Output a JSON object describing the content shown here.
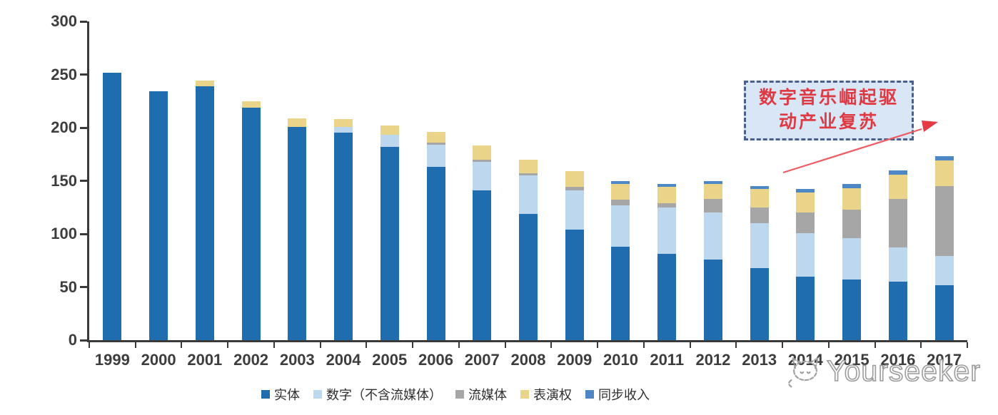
{
  "chart_data": {
    "type": "bar",
    "stacked": true,
    "title": "",
    "xlabel": "",
    "ylabel": "",
    "ylim": [
      0,
      300
    ],
    "yticks": [
      0,
      50,
      100,
      150,
      200,
      250,
      300
    ],
    "grid": false,
    "legend_position": "bottom",
    "categories": [
      "1999",
      "2000",
      "2001",
      "2002",
      "2003",
      "2004",
      "2005",
      "2006",
      "2007",
      "2008",
      "2009",
      "2010",
      "2011",
      "2012",
      "2013",
      "2014",
      "2015",
      "2016",
      "2017"
    ],
    "series": [
      {
        "name": "实体",
        "color": "#1f6dae",
        "values": [
          252,
          234,
          239,
          219,
          201,
          195,
          182,
          163,
          141,
          119,
          104,
          88,
          81,
          76,
          68,
          60,
          57,
          55,
          52
        ]
      },
      {
        "name": "数字（不含流媒体）",
        "color": "#bdd7ee",
        "values": [
          0,
          0,
          0,
          0,
          0,
          6,
          11,
          21,
          27,
          36,
          37,
          39,
          44,
          44,
          42,
          41,
          39,
          32,
          27
        ]
      },
      {
        "name": "流媒体",
        "color": "#a6a6a6",
        "values": [
          0,
          0,
          0,
          0,
          0,
          0,
          0,
          2,
          2,
          2,
          3,
          5,
          4,
          13,
          15,
          19,
          27,
          46,
          66
        ]
      },
      {
        "name": "表演权",
        "color": "#ead489",
        "values": [
          0,
          0,
          5,
          6,
          8,
          7,
          9,
          10,
          13,
          13,
          15,
          15,
          15,
          14,
          17,
          19,
          20,
          23,
          24
        ]
      },
      {
        "name": "同步收入",
        "color": "#4e87c5",
        "values": [
          0,
          0,
          0,
          0,
          0,
          0,
          0,
          0,
          0,
          0,
          0,
          3,
          3,
          3,
          3,
          3,
          4,
          4,
          4
        ]
      }
    ]
  },
  "annotation": {
    "lines": [
      "数字音乐崛起驱",
      "动产业复苏"
    ],
    "text_color": "#de3a44",
    "box_fill": "#d9e6f5",
    "border_color": "#49608f",
    "arrow_line_color": "#ef5b63",
    "arrow_head_color": "#e63946"
  },
  "axis": {
    "line_color": "#3a3a3a",
    "label_color": "#3d3d3d"
  },
  "watermark": {
    "text": "Yourseeker",
    "logo": "cat-logo"
  }
}
